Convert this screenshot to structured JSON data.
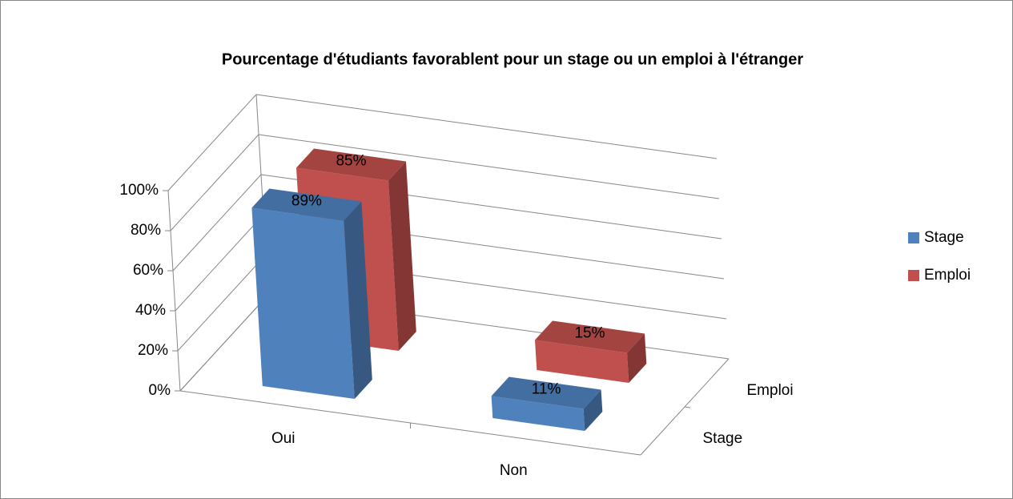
{
  "chart_data": {
    "type": "bar3d",
    "title": "Pourcentage d'étudiants favorablent pour un stage ou un emploi à l'étranger",
    "categories": [
      "Oui",
      "Non"
    ],
    "series": [
      {
        "name": "Stage",
        "color": "#4f81bd",
        "values": [
          89,
          11
        ],
        "value_labels": [
          "89%",
          "11%"
        ]
      },
      {
        "name": "Emploi",
        "color": "#c0504d",
        "values": [
          85,
          15
        ],
        "value_labels": [
          "85%",
          "15%"
        ]
      }
    ],
    "ylim": [
      0,
      100
    ],
    "yticks": [
      {
        "value": 0,
        "label": "0%"
      },
      {
        "value": 20,
        "label": "20%"
      },
      {
        "value": 40,
        "label": "40%"
      },
      {
        "value": 60,
        "label": "60%"
      },
      {
        "value": 80,
        "label": "80%"
      },
      {
        "value": 100,
        "label": "100%"
      }
    ],
    "grid": true,
    "legend": "right"
  }
}
